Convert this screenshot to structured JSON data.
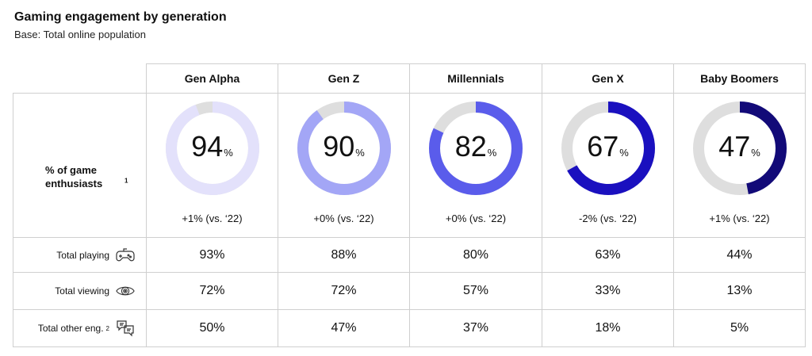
{
  "title": "Gaming engagement by generation",
  "subtitle": "Base: Total online population",
  "chart_data": {
    "type": "table",
    "title": "Gaming engagement by generation",
    "subtitle": "Base: Total online population",
    "columns": [
      "Gen Alpha",
      "Gen Z",
      "Millennials",
      "Gen X",
      "Baby Boomers"
    ],
    "enthusiasts": {
      "label": "% of game enthusiasts",
      "footnote": "1",
      "values": [
        94,
        90,
        82,
        67,
        47
      ],
      "value_text": [
        "94",
        "90",
        "82",
        "67",
        "47"
      ],
      "unit": "%",
      "changes": [
        "+1% (vs. ‘22)",
        "+0% (vs. ‘22)",
        "+0% (vs. ‘22)",
        "-2% (vs. ‘22)",
        "+1% (vs. ‘22)"
      ],
      "ring_colors": [
        "#e3e1fb",
        "#a3a6f6",
        "#5a5ceb",
        "#1a10bf",
        "#120a78"
      ],
      "track_color": "#dedede"
    },
    "rows": [
      {
        "label": "Total playing",
        "footnote": "",
        "icon": "gamepad-icon",
        "values": [
          "93%",
          "88%",
          "80%",
          "63%",
          "44%"
        ]
      },
      {
        "label": "Total viewing",
        "footnote": "",
        "icon": "eye-icon",
        "values": [
          "72%",
          "72%",
          "57%",
          "33%",
          "13%"
        ]
      },
      {
        "label": "Total other eng.",
        "footnote": "2",
        "icon": "chat-bubbles-icon",
        "values": [
          "50%",
          "47%",
          "37%",
          "18%",
          "5%"
        ]
      }
    ]
  }
}
